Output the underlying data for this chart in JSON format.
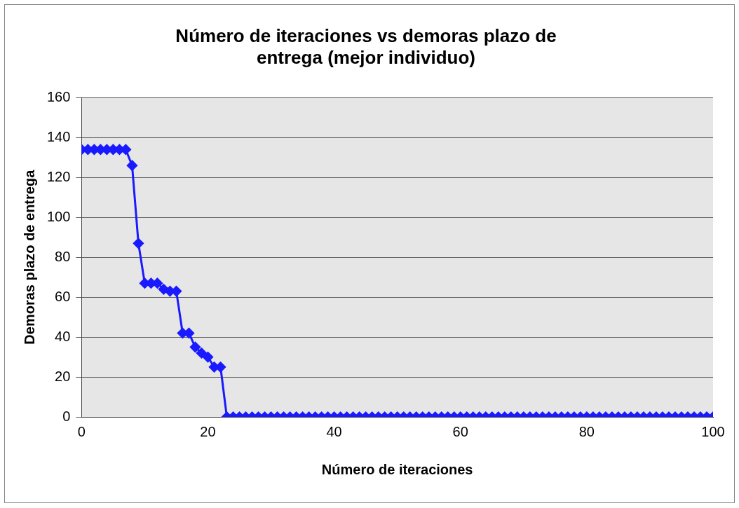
{
  "chart_data": {
    "type": "line",
    "title": "Número de iteraciones vs demoras plazo de entrega (mejor individuo)",
    "xlabel": "Número de iteraciones",
    "ylabel": "Demoras plazo de entrega",
    "x": [
      0,
      1,
      2,
      3,
      4,
      5,
      6,
      7,
      8,
      9,
      10,
      11,
      12,
      13,
      14,
      15,
      16,
      17,
      18,
      19,
      20,
      21,
      22,
      23,
      24,
      25,
      26,
      27,
      28,
      29,
      30,
      31,
      32,
      33,
      34,
      35,
      36,
      37,
      38,
      39,
      40,
      41,
      42,
      43,
      44,
      45,
      46,
      47,
      48,
      49,
      50,
      51,
      52,
      53,
      54,
      55,
      56,
      57,
      58,
      59,
      60,
      61,
      62,
      63,
      64,
      65,
      66,
      67,
      68,
      69,
      70,
      71,
      72,
      73,
      74,
      75,
      76,
      77,
      78,
      79,
      80,
      81,
      82,
      83,
      84,
      85,
      86,
      87,
      88,
      89,
      90,
      91,
      92,
      93,
      94,
      95,
      96,
      97,
      98,
      99,
      100
    ],
    "series": [
      {
        "color": "#1a1aff",
        "values": [
          134,
          134,
          134,
          134,
          134,
          134,
          134,
          134,
          126,
          87,
          67,
          67,
          67,
          64,
          63,
          63,
          42,
          42,
          35,
          32,
          30,
          25,
          25,
          0,
          0,
          0,
          0,
          0,
          0,
          0,
          0,
          0,
          0,
          0,
          0,
          0,
          0,
          0,
          0,
          0,
          0,
          0,
          0,
          0,
          0,
          0,
          0,
          0,
          0,
          0,
          0,
          0,
          0,
          0,
          0,
          0,
          0,
          0,
          0,
          0,
          0,
          0,
          0,
          0,
          0,
          0,
          0,
          0,
          0,
          0,
          0,
          0,
          0,
          0,
          0,
          0,
          0,
          0,
          0,
          0,
          0,
          0,
          0,
          0,
          0,
          0,
          0,
          0,
          0,
          0,
          0,
          0,
          0,
          0,
          0,
          0,
          0,
          0,
          0,
          0,
          0
        ]
      }
    ],
    "xlim": [
      0,
      100
    ],
    "xticks": [
      0,
      20,
      40,
      60,
      80,
      100
    ],
    "ylim": [
      0,
      160
    ],
    "yticks": [
      0,
      20,
      40,
      60,
      80,
      100,
      120,
      140,
      160
    ],
    "grid": "y",
    "legend": false,
    "marker": "diamond",
    "line_style": "solid"
  }
}
